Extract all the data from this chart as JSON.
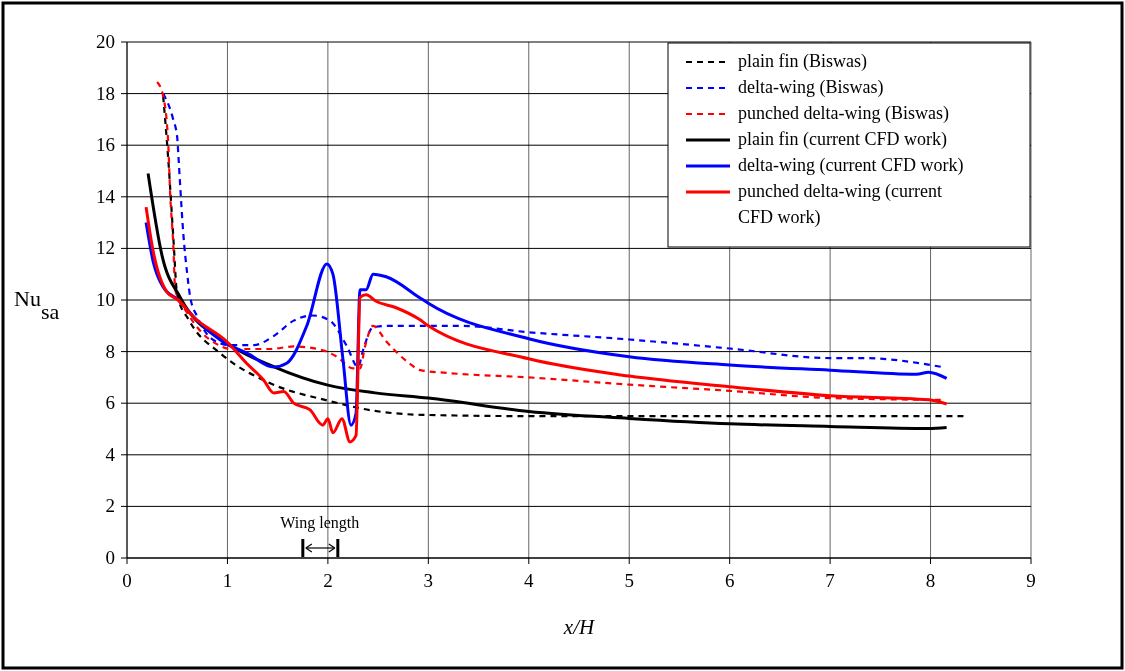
{
  "chart_data": {
    "type": "line",
    "xlabel": "x/H",
    "ylabel": "Nu$_{sa}$",
    "xlim": [
      0,
      9
    ],
    "ylim": [
      0,
      20
    ],
    "xticks": [
      0,
      1,
      2,
      3,
      4,
      5,
      6,
      7,
      8,
      9
    ],
    "yticks": [
      0,
      2,
      4,
      6,
      8,
      10,
      12,
      14,
      16,
      18,
      20
    ],
    "grid": true,
    "legend": "top right",
    "annotations": [
      "Wing length"
    ],
    "series": [
      {
        "name": "plain fin (Biswas)",
        "color": "#000000",
        "line_style": "dashed",
        "x": [
          0.36,
          0.41,
          0.46,
          0.5,
          0.62,
          0.94,
          1.41,
          2.0,
          2.47,
          2.93,
          4,
          5,
          6,
          7,
          8,
          8.37
        ],
        "values": [
          17.9,
          15.5,
          12.5,
          10.2,
          9.2,
          7.9,
          6.8,
          6.1,
          5.7,
          5.55,
          5.5,
          5.5,
          5.5,
          5.5,
          5.5,
          5.5
        ]
      },
      {
        "name": "delta-wing (Biswas)",
        "color": "#0000ff",
        "line_style": "dashed",
        "x": [
          0.36,
          0.46,
          0.5,
          0.51,
          0.53,
          0.56,
          0.6,
          0.63,
          0.7,
          0.86,
          1.03,
          1.26,
          1.46,
          1.66,
          1.85,
          2.02,
          2.19,
          2.3,
          2.35,
          2.45,
          2.65,
          3.32,
          4,
          5,
          6,
          7,
          7.33,
          8.12
        ],
        "values": [
          18,
          17,
          16.3,
          15.7,
          14.4,
          12.6,
          11,
          10.1,
          9.35,
          8.45,
          8.25,
          8.25,
          8.6,
          9.2,
          9.4,
          9.2,
          8.2,
          7.4,
          8.05,
          8.95,
          9,
          9,
          8.75,
          8.47,
          8.12,
          7.75,
          7.75,
          7.4
        ]
      },
      {
        "name": "punched delta-wing (Biswas)",
        "color": "#ff0000",
        "line_style": "dashed",
        "x": [
          0.3,
          0.36,
          0.41,
          0.43,
          0.46,
          0.48,
          0.6,
          0.73,
          0.89,
          1.03,
          1.42,
          1.66,
          1.95,
          2.09,
          2.25,
          2.32,
          2.37,
          2.45,
          2.58,
          2.81,
          2.92,
          3.2,
          4,
          5,
          6,
          7,
          8.12
        ],
        "values": [
          18.45,
          17.9,
          16.1,
          14.1,
          12.2,
          10.4,
          9.5,
          8.8,
          8.3,
          8.1,
          8.1,
          8.2,
          8.05,
          7.8,
          7.35,
          7.35,
          8.2,
          9,
          8.4,
          7.55,
          7.28,
          7.17,
          7,
          6.72,
          6.48,
          6.2,
          6.13
        ]
      },
      {
        "name": "plain fin (current CFD work)",
        "color": "#000000",
        "line_style": "solid",
        "x": [
          0.21,
          0.35,
          0.53,
          1.01,
          1.47,
          2.0,
          2.47,
          3.0,
          4,
          5,
          6,
          7,
          7.98,
          8.16
        ],
        "values": [
          14.9,
          11.7,
          10.1,
          8.3,
          7.4,
          6.7,
          6.4,
          6.2,
          5.68,
          5.41,
          5.2,
          5.1,
          5.02,
          5.06
        ]
      },
      {
        "name": "delta-wing (current CFD work)",
        "color": "#0000ff",
        "line_style": "solid",
        "x": [
          0.19,
          0.26,
          0.36,
          0.51,
          0.7,
          0.99,
          1.19,
          1.46,
          1.59,
          1.79,
          1.99,
          2.05,
          2.15,
          2.23,
          2.28,
          2.32,
          2.38,
          2.45,
          2.58,
          2.91,
          3.0,
          4,
          5,
          6,
          7,
          7.86,
          7.98,
          8.16
        ],
        "values": [
          13,
          11.5,
          10.5,
          10,
          9.2,
          8.3,
          7.95,
          7.4,
          7.55,
          9,
          11.4,
          11,
          7.7,
          5.15,
          5.6,
          10.4,
          10.4,
          11,
          10.9,
          10.1,
          9.87,
          8.5,
          7.8,
          7.48,
          7.28,
          7.12,
          7.2,
          6.96
        ]
      },
      {
        "name": "punched delta-wing (current CFD work)",
        "color": "#ff0000",
        "line_style": "solid",
        "x": [
          0.19,
          0.26,
          0.4,
          0.51,
          0.66,
          0.99,
          1.19,
          1.36,
          1.46,
          1.56,
          1.66,
          1.82,
          1.95,
          2.0,
          2.05,
          2.14,
          2.22,
          2.28,
          2.32,
          2.38,
          2.48,
          2.68,
          2.91,
          3.0,
          4,
          5,
          6,
          7,
          7.98,
          8.16
        ],
        "values": [
          13.6,
          11.9,
          10.3,
          10,
          9.35,
          8.4,
          7.55,
          6.9,
          6.4,
          6.45,
          6,
          5.75,
          5.15,
          5.4,
          4.85,
          5.4,
          4.5,
          4.75,
          10.1,
          10.2,
          9.95,
          9.7,
          9.25,
          9,
          7.72,
          7.05,
          6.64,
          6.29,
          6.13,
          5.97
        ]
      }
    ]
  }
}
